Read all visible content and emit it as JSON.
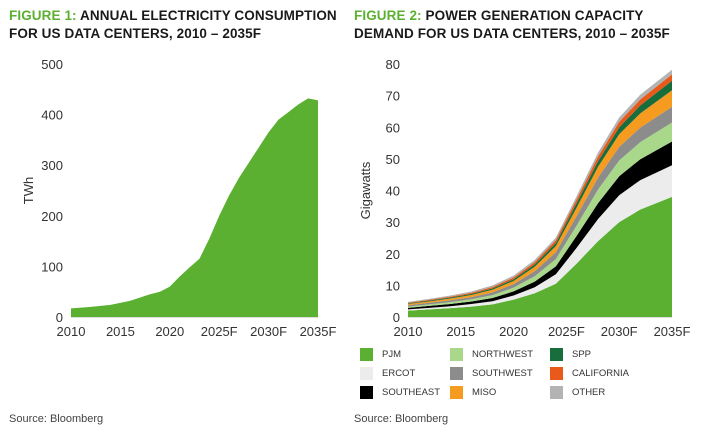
{
  "figure1": {
    "fig_label": "FIGURE 1:",
    "title_line1": "ANNUAL ELECTRICITY CONSUMPTION",
    "title_line2": "FOR US DATA CENTERS, 2010 – 2035F",
    "source": "Source: Bloomberg"
  },
  "figure2": {
    "fig_label": "FIGURE 2:",
    "title_line1": "POWER GENERATION CAPACITY",
    "title_line2": "DEMAND FOR US DATA CENTERS, 2010 – 2035F",
    "source": "Source: Bloomberg"
  },
  "chart_data": [
    {
      "type": "area",
      "title": "Annual Electricity Consumption for US Data Centers, 2010 – 2035F",
      "ylabel": "TWh",
      "xlabel": "",
      "ylim": [
        0,
        500
      ],
      "yticks": [
        0,
        100,
        200,
        300,
        400,
        500
      ],
      "xticks": [
        "2010",
        "2015",
        "2020",
        "2025F",
        "2030F",
        "2035F"
      ],
      "x": [
        2010,
        2012,
        2014,
        2016,
        2018,
        2019,
        2020,
        2021,
        2022,
        2023,
        2024,
        2025,
        2026,
        2027,
        2028,
        2029,
        2030,
        2031,
        2032,
        2033,
        2034,
        2035
      ],
      "values": [
        17,
        20,
        24,
        32,
        45,
        50,
        60,
        80,
        98,
        115,
        155,
        200,
        240,
        275,
        305,
        335,
        365,
        390,
        405,
        420,
        432,
        428
      ],
      "color": "#5bb031"
    },
    {
      "type": "area",
      "stacked": true,
      "title": "Power Generation Capacity Demand for US Data Centers, 2010 – 2035F",
      "ylabel": "Gigawatts",
      "xlabel": "",
      "ylim": [
        0,
        80
      ],
      "yticks": [
        0,
        10,
        20,
        30,
        40,
        50,
        60,
        70,
        80
      ],
      "xticks": [
        "2010",
        "2015",
        "2020",
        "2025F",
        "2030F",
        "2035F"
      ],
      "x": [
        2010,
        2012,
        2014,
        2016,
        2018,
        2020,
        2022,
        2024,
        2026,
        2028,
        2030,
        2032,
        2035
      ],
      "series": [
        {
          "name": "PJM",
          "color": "#5bb031",
          "values": [
            2,
            2.4,
            2.8,
            3.3,
            4.0,
            5.5,
            7.5,
            10.5,
            17,
            24,
            30,
            34,
            38
          ]
        },
        {
          "name": "ERCOT",
          "color": "#ececec",
          "values": [
            0.4,
            0.5,
            0.6,
            0.8,
            1.0,
            1.3,
            1.9,
            3.0,
            5.0,
            7.0,
            8.5,
            9.3,
            10
          ]
        },
        {
          "name": "SOUTHEAST",
          "color": "#000000",
          "values": [
            0.5,
            0.6,
            0.7,
            0.8,
            1.0,
            1.3,
            1.8,
            2.5,
            3.8,
            5.0,
            6.0,
            6.6,
            7.5
          ]
        },
        {
          "name": "NORTHWEST",
          "color": "#a9d88a",
          "values": [
            0.4,
            0.5,
            0.6,
            0.7,
            0.9,
            1.2,
            1.7,
            2.3,
            3.3,
            4.3,
            5.0,
            5.4,
            6
          ]
        },
        {
          "name": "SOUTHWEST",
          "color": "#8c8c8c",
          "values": [
            0.4,
            0.5,
            0.6,
            0.7,
            0.9,
            1.1,
            1.6,
            2.2,
            3.0,
            3.8,
            4.3,
            4.6,
            5
          ]
        },
        {
          "name": "MISO",
          "color": "#f59b1f",
          "values": [
            0.4,
            0.45,
            0.55,
            0.65,
            0.8,
            1.0,
            1.4,
            1.9,
            2.7,
            3.4,
            4.0,
            4.5,
            5.2
          ]
        },
        {
          "name": "SPP",
          "color": "#176d3b",
          "values": [
            0.2,
            0.25,
            0.3,
            0.35,
            0.45,
            0.55,
            0.75,
            1.0,
            1.4,
            1.8,
            2.2,
            2.5,
            3
          ]
        },
        {
          "name": "CALIFORNIA",
          "color": "#e8591a",
          "values": [
            0.2,
            0.25,
            0.3,
            0.35,
            0.45,
            0.55,
            0.7,
            0.9,
            1.2,
            1.5,
            1.7,
            1.9,
            2
          ]
        },
        {
          "name": "OTHER",
          "color": "#b3b3b3",
          "values": [
            0.3,
            0.3,
            0.35,
            0.4,
            0.5,
            0.6,
            0.7,
            0.8,
            1.0,
            1.2,
            1.4,
            1.5,
            1.5
          ]
        }
      ]
    }
  ]
}
